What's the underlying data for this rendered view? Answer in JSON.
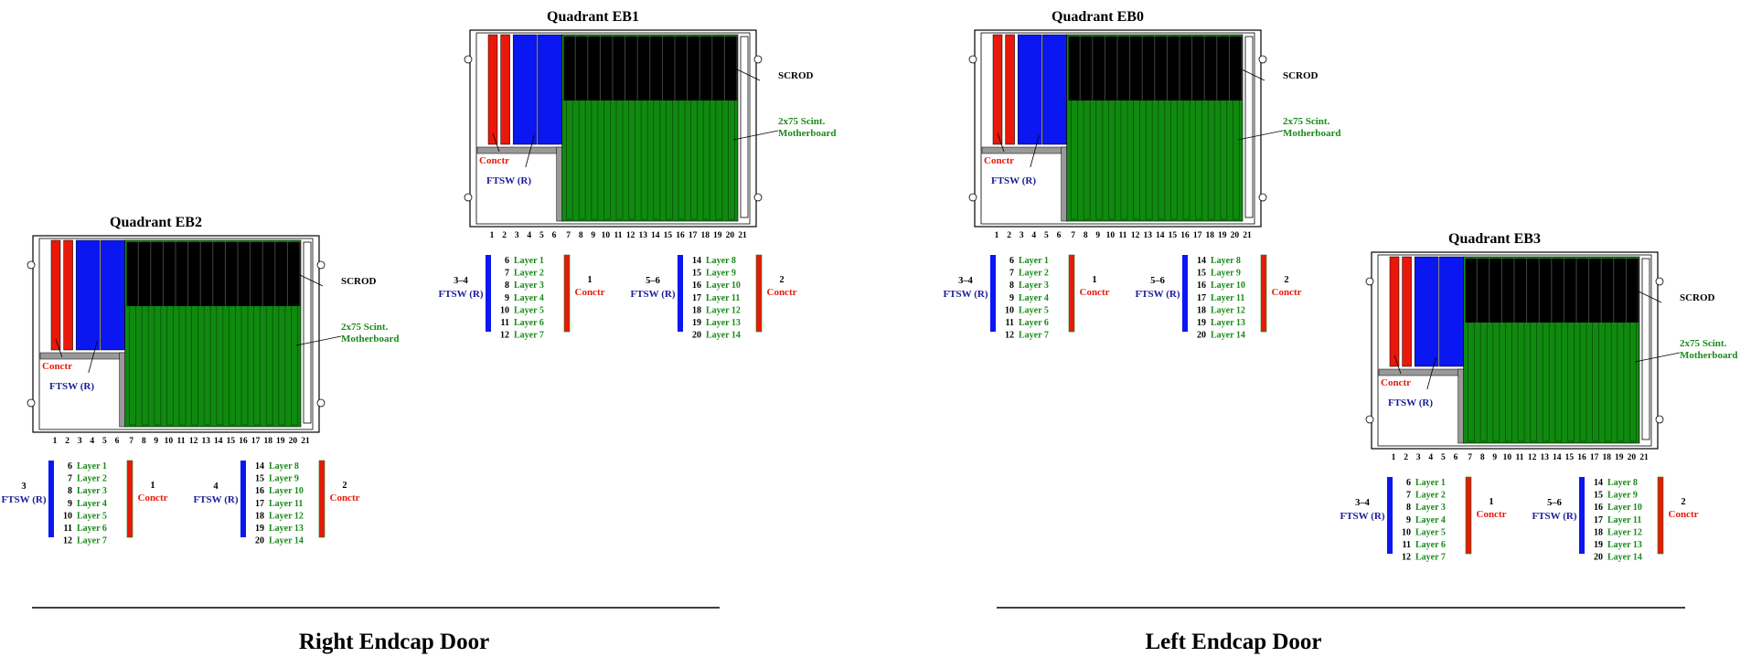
{
  "colors": {
    "red": "#e8190a",
    "blue": "#0a17f0",
    "green": "#0f8a0f",
    "black": "#000000",
    "dark_green_text": "#1a8a1a",
    "navy_text": "#1a1a99",
    "gray": "#999999"
  },
  "slot_numbers": [
    "1",
    "2",
    "3",
    "4",
    "5",
    "6",
    "7",
    "8",
    "9",
    "10",
    "11",
    "12",
    "13",
    "14",
    "15",
    "16",
    "17",
    "18",
    "19",
    "20",
    "21"
  ],
  "labels": {
    "scrod": "SCROD",
    "motherboard_line1": "2x75 Scint.",
    "motherboard_line2": "Motherboard",
    "conctr": "Conctr",
    "ftsw_r": "FTSW (R)"
  },
  "quadrants": [
    {
      "id": "EB2",
      "title": "Quadrant EB2",
      "ftsw_group_left": "3",
      "ftsw_group_right": "4",
      "conctr_left": "1",
      "conctr_right": "2",
      "rows_left": [
        [
          "6",
          "Layer 1"
        ],
        [
          "7",
          "Layer 2"
        ],
        [
          "8",
          "Layer 3"
        ],
        [
          "9",
          "Layer 4"
        ],
        [
          "10",
          "Layer 5"
        ],
        [
          "11",
          "Layer 6"
        ],
        [
          "12",
          "Layer 7"
        ]
      ],
      "rows_right": [
        [
          "14",
          "Layer 8"
        ],
        [
          "15",
          "Layer 9"
        ],
        [
          "16",
          "Layer 10"
        ],
        [
          "17",
          "Layer 11"
        ],
        [
          "18",
          "Layer 12"
        ],
        [
          "19",
          "Layer 13"
        ],
        [
          "20",
          "Layer 14"
        ]
      ]
    },
    {
      "id": "EB1",
      "title": "Quadrant EB1",
      "ftsw_group_left": "3–4",
      "ftsw_group_right": "5–6",
      "conctr_left": "1",
      "conctr_right": "2",
      "rows_left": [
        [
          "6",
          "Layer 1"
        ],
        [
          "7",
          "Layer 2"
        ],
        [
          "8",
          "Layer 3"
        ],
        [
          "9",
          "Layer 4"
        ],
        [
          "10",
          "Layer 5"
        ],
        [
          "11",
          "Layer 6"
        ],
        [
          "12",
          "Layer 7"
        ]
      ],
      "rows_right": [
        [
          "14",
          "Layer 8"
        ],
        [
          "15",
          "Layer 9"
        ],
        [
          "16",
          "Layer 10"
        ],
        [
          "17",
          "Layer 11"
        ],
        [
          "18",
          "Layer 12"
        ],
        [
          "19",
          "Layer 13"
        ],
        [
          "20",
          "Layer 14"
        ]
      ]
    },
    {
      "id": "EB0",
      "title": "Quadrant EB0",
      "ftsw_group_left": "3–4",
      "ftsw_group_right": "5–6",
      "conctr_left": "1",
      "conctr_right": "2",
      "rows_left": [
        [
          "6",
          "Layer 1"
        ],
        [
          "7",
          "Layer 2"
        ],
        [
          "8",
          "Layer 3"
        ],
        [
          "9",
          "Layer 4"
        ],
        [
          "10",
          "Layer 5"
        ],
        [
          "11",
          "Layer 6"
        ],
        [
          "12",
          "Layer 7"
        ]
      ],
      "rows_right": [
        [
          "14",
          "Layer 8"
        ],
        [
          "15",
          "Layer 9"
        ],
        [
          "16",
          "Layer 10"
        ],
        [
          "17",
          "Layer 11"
        ],
        [
          "18",
          "Layer 12"
        ],
        [
          "19",
          "Layer 13"
        ],
        [
          "20",
          "Layer 14"
        ]
      ]
    },
    {
      "id": "EB3",
      "title": "Quadrant EB3",
      "ftsw_group_left": "3–4",
      "ftsw_group_right": "5–6",
      "conctr_left": "1",
      "conctr_right": "2",
      "rows_left": [
        [
          "6",
          "Layer 1"
        ],
        [
          "7",
          "Layer 2"
        ],
        [
          "8",
          "Layer 3"
        ],
        [
          "9",
          "Layer 4"
        ],
        [
          "10",
          "Layer 5"
        ],
        [
          "11",
          "Layer 6"
        ],
        [
          "12",
          "Layer 7"
        ]
      ],
      "rows_right": [
        [
          "14",
          "Layer 8"
        ],
        [
          "15",
          "Layer 9"
        ],
        [
          "16",
          "Layer 10"
        ],
        [
          "17",
          "Layer 11"
        ],
        [
          "18",
          "Layer 12"
        ],
        [
          "19",
          "Layer 13"
        ],
        [
          "20",
          "Layer 14"
        ]
      ]
    }
  ],
  "doors": [
    {
      "id": "right",
      "title": "Right Endcap Door"
    },
    {
      "id": "left",
      "title": "Left Endcap Door"
    }
  ]
}
